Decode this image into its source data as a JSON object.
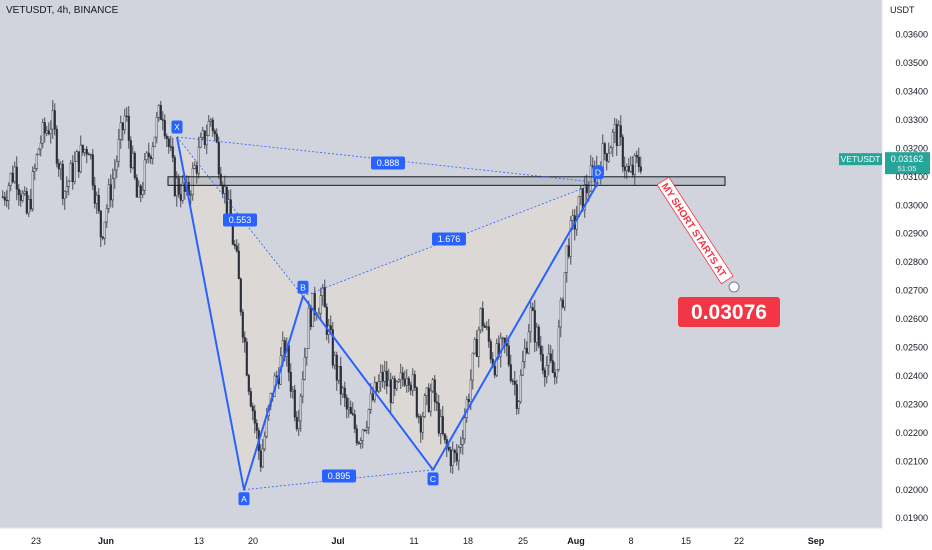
{
  "header": {
    "symbol_line": "VETUSDT, 4h, BINANCE",
    "currency": "USDT"
  },
  "colors": {
    "background": "#ffffff",
    "plot_background": "#d1d4dc",
    "candle": "#2a2e39",
    "pattern_line": "#2962ff",
    "pattern_fill": "#ddd8d3",
    "ratio_label_bg": "#2962ff",
    "price_tag_bg": "#26a69a",
    "short_label_bg": "#f23645",
    "short_text": "#f23645"
  },
  "annotations": {
    "ratios": [
      "0.888",
      "0.553",
      "1.676",
      "0.895"
    ],
    "points": [
      "X",
      "A",
      "B",
      "C",
      "D"
    ],
    "short_text": "MY SHORT STARTS AT",
    "short_price": "0.03076"
  },
  "price_tag": {
    "symbol": "VETUSDT",
    "price": "0.03162",
    "countdown": "51:05"
  },
  "chart_data": {
    "type": "candlestick",
    "title": "VETUSDT, 4h, BINANCE",
    "yaxis_unit": "USDT",
    "ylim": [
      0.0185,
      0.0377
    ],
    "y_ticks": [
      "0.03600",
      "0.03500",
      "0.03400",
      "0.03300",
      "0.03200",
      "0.03100",
      "0.03000",
      "0.02900",
      "0.02800",
      "0.02700",
      "0.02600",
      "0.02500",
      "0.02400",
      "0.02300",
      "0.02200",
      "0.02100",
      "0.02000",
      "0.01900"
    ],
    "x_ticks": [
      "23",
      "Jun",
      "13",
      "20",
      "Jul",
      "11",
      "18",
      "25",
      "Aug",
      "8",
      "15",
      "22",
      "Sep"
    ],
    "series": [
      {
        "name": "VETUSDT",
        "price_path": [
          0.0303,
          0.0313,
          0.0296,
          0.0322,
          0.033,
          0.0305,
          0.0315,
          0.0322,
          0.029,
          0.031,
          0.0332,
          0.03,
          0.032,
          0.0335,
          0.0308,
          0.0303,
          0.0318,
          0.0331,
          0.0307,
          0.0282,
          0.024,
          0.021,
          0.0235,
          0.025,
          0.0225,
          0.0262,
          0.0268,
          0.0245,
          0.0228,
          0.0219,
          0.023,
          0.024,
          0.0232,
          0.0244,
          0.0225,
          0.0235,
          0.0215,
          0.021,
          0.0235,
          0.0262,
          0.0245,
          0.025,
          0.0232,
          0.0262,
          0.0246,
          0.024,
          0.0285,
          0.03,
          0.031,
          0.0318,
          0.0326,
          0.031,
          0.0316
        ],
        "last": 0.03162
      }
    ],
    "harmonic_pattern": {
      "X": 0.0324,
      "A": 0.02,
      "B": 0.0268,
      "C": 0.0207,
      "D": 0.0308,
      "ratios": {
        "XD": 0.888,
        "XB": 0.553,
        "BD": 1.676,
        "AC": 0.895
      }
    },
    "resistance_zone": [
      0.0307,
      0.031
    ],
    "grid": false
  }
}
